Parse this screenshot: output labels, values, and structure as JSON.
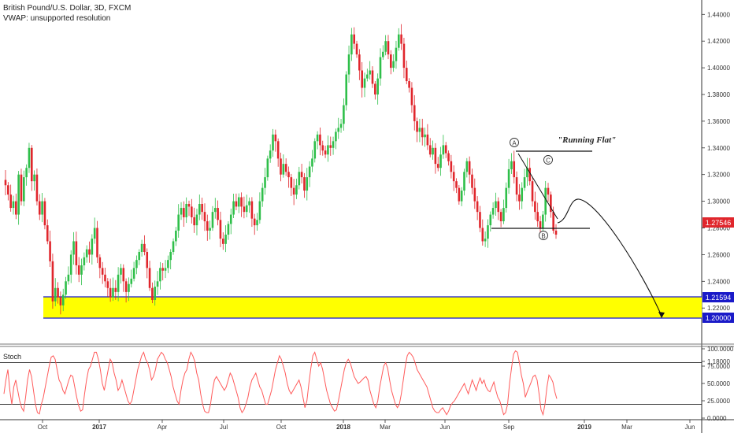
{
  "chart": {
    "title": "British Pound/U.S. Dollar, 3D, FXCM",
    "subtitle": "VWAP: unsupported resolution",
    "colors": {
      "up": "#2fbf4a",
      "down": "#e0262c",
      "zone_fill": "#ffff00",
      "zone_line": "#1a1ac8",
      "last_price_bg": "#e0262c",
      "level_bg": "#1a1ac8",
      "stoch_line": "#ff5b5b",
      "stoch_band": "#222222"
    }
  },
  "annotations": {
    "running_flat": "\"Running Flat\"",
    "wave_a": "A",
    "wave_b": "B",
    "wave_c": "C"
  },
  "price_labels": {
    "last": "1.27546",
    "zone_top": "1.21594",
    "zone_bottom": "1.20000"
  },
  "stoch": {
    "label": "Stoch",
    "ticks": [
      "100.0000",
      "75.0000",
      "50.0000",
      "25.0000",
      "0.0000"
    ],
    "band_upper": 80,
    "band_lower": 20,
    "values": [
      35,
      55,
      70,
      40,
      20,
      45,
      55,
      40,
      25,
      15,
      10,
      30,
      55,
      70,
      60,
      40,
      20,
      8,
      6,
      20,
      30,
      45,
      60,
      75,
      88,
      90,
      85,
      70,
      55,
      50,
      40,
      35,
      45,
      55,
      62,
      60,
      45,
      30,
      18,
      10,
      12,
      35,
      55,
      70,
      75,
      85,
      95,
      95,
      85,
      70,
      50,
      40,
      55,
      70,
      85,
      80,
      65,
      55,
      40,
      45,
      55,
      45,
      35,
      25,
      20,
      25,
      40,
      55,
      70,
      80,
      90,
      95,
      85,
      80,
      70,
      55,
      60,
      70,
      85,
      90,
      95,
      92,
      85,
      80,
      70,
      60,
      45,
      35,
      25,
      20,
      40,
      55,
      65,
      70,
      85,
      95,
      90,
      82,
      65,
      55,
      35,
      20,
      10,
      8,
      8,
      20,
      40,
      55,
      60,
      55,
      50,
      45,
      40,
      45,
      55,
      65,
      60,
      50,
      40,
      30,
      15,
      8,
      12,
      20,
      30,
      45,
      55,
      60,
      65,
      55,
      45,
      40,
      30,
      20,
      20,
      30,
      40,
      55,
      70,
      80,
      90,
      85,
      75,
      65,
      50,
      40,
      35,
      40,
      45,
      50,
      55,
      45,
      30,
      15,
      25,
      50,
      72,
      90,
      95,
      85,
      75,
      80,
      70,
      55,
      40,
      30,
      20,
      15,
      10,
      12,
      25,
      40,
      55,
      70,
      80,
      85,
      80,
      70,
      60,
      55,
      50,
      52,
      55,
      58,
      60,
      55,
      40,
      30,
      20,
      15,
      25,
      45,
      60,
      75,
      80,
      72,
      55,
      40,
      30,
      20,
      15,
      20,
      35,
      55,
      75,
      90,
      95,
      92,
      88,
      80,
      70,
      65,
      60,
      55,
      50,
      45,
      35,
      25,
      15,
      10,
      8,
      8,
      12,
      15,
      10,
      5,
      10,
      18,
      22,
      25,
      30,
      35,
      40,
      45,
      50,
      42,
      35,
      45,
      55,
      48,
      40,
      50,
      58,
      50,
      55,
      45,
      40,
      38,
      45,
      52,
      40,
      30,
      25,
      15,
      5,
      8,
      20,
      50,
      72,
      92,
      97,
      95,
      80,
      62,
      50,
      30,
      38,
      45,
      52,
      60,
      62,
      55,
      35,
      12,
      5,
      20,
      45,
      62,
      58,
      52,
      38,
      28
    ]
  },
  "chart_data": {
    "type": "candlestick",
    "title": "British Pound/U.S. Dollar, 3D, FXCM",
    "xlabel": "",
    "ylabel": "",
    "x_tick_labels": [
      "Oct",
      "2017",
      "Apr",
      "Jul",
      "Oct",
      "2018",
      "Mar",
      "Jun",
      "Sep",
      "2019",
      "Mar",
      "Jun"
    ],
    "y_tick_labels": [
      "1.44000",
      "1.42000",
      "1.40000",
      "1.38000",
      "1.36000",
      "1.34000",
      "1.32000",
      "1.30000",
      "1.28000",
      "1.26000",
      "1.24000",
      "1.22000",
      "1.18000"
    ],
    "ylim": [
      1.17,
      1.45
    ],
    "close_path": [
      1.312,
      1.305,
      1.295,
      1.3,
      1.29,
      1.32,
      1.3,
      1.318,
      1.325,
      1.34,
      1.315,
      1.32,
      1.3,
      1.29,
      1.3,
      1.282,
      1.27,
      1.255,
      1.225,
      1.235,
      1.228,
      1.222,
      1.23,
      1.24,
      1.245,
      1.26,
      1.27,
      1.252,
      1.245,
      1.252,
      1.258,
      1.264,
      1.26,
      1.272,
      1.28,
      1.258,
      1.25,
      1.245,
      1.24,
      1.235,
      1.228,
      1.235,
      1.232,
      1.245,
      1.25,
      1.24,
      1.232,
      1.238,
      1.242,
      1.25,
      1.256,
      1.262,
      1.268,
      1.262,
      1.25,
      1.235,
      1.226,
      1.236,
      1.24,
      1.25,
      1.248,
      1.25,
      1.256,
      1.262,
      1.27,
      1.278,
      1.29,
      1.295,
      1.288,
      1.298,
      1.296,
      1.288,
      1.282,
      1.29,
      1.298,
      1.292,
      1.285,
      1.278,
      1.28,
      1.292,
      1.295,
      1.286,
      1.272,
      1.268,
      1.275,
      1.283,
      1.29,
      1.3,
      1.296,
      1.303,
      1.296,
      1.292,
      1.297,
      1.3,
      1.287,
      1.282,
      1.286,
      1.3,
      1.31,
      1.318,
      1.332,
      1.338,
      1.35,
      1.345,
      1.332,
      1.32,
      1.328,
      1.322,
      1.318,
      1.31,
      1.305,
      1.312,
      1.322,
      1.318,
      1.308,
      1.318,
      1.326,
      1.332,
      1.345,
      1.35,
      1.342,
      1.338,
      1.335,
      1.342,
      1.34,
      1.345,
      1.352,
      1.355,
      1.358,
      1.372,
      1.395,
      1.41,
      1.425,
      1.418,
      1.41,
      1.398,
      1.385,
      1.392,
      1.395,
      1.398,
      1.388,
      1.38,
      1.392,
      1.408,
      1.412,
      1.42,
      1.41,
      1.4,
      1.405,
      1.415,
      1.425,
      1.418,
      1.4,
      1.39,
      1.385,
      1.372,
      1.36,
      1.352,
      1.355,
      1.348,
      1.35,
      1.342,
      1.335,
      1.34,
      1.328,
      1.325,
      1.335,
      1.342,
      1.336,
      1.33,
      1.322,
      1.315,
      1.31,
      1.3,
      1.308,
      1.322,
      1.33,
      1.32,
      1.31,
      1.3,
      1.292,
      1.28,
      1.27,
      1.272,
      1.282,
      1.29,
      1.295,
      1.3,
      1.292,
      1.285,
      1.295,
      1.31,
      1.324,
      1.33,
      1.318,
      1.305,
      1.3,
      1.31,
      1.318,
      1.325,
      1.315,
      1.3,
      1.292,
      1.285,
      1.28,
      1.29,
      1.31,
      1.305,
      1.292,
      1.278,
      1.275
    ]
  }
}
